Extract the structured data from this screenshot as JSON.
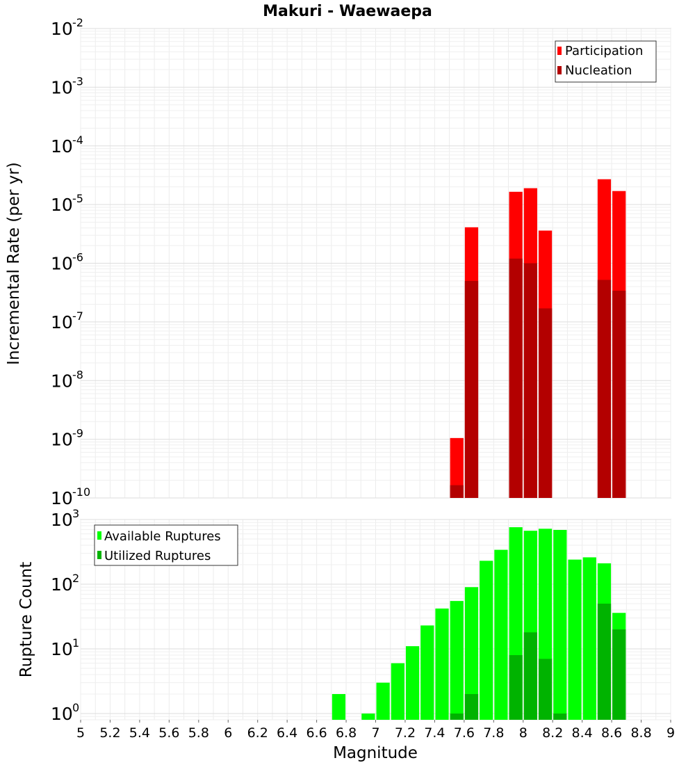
{
  "chart_data": [
    {
      "type": "bar",
      "title": "Makuri - Waewaepa",
      "xlabel": "",
      "ylabel": "Incremental Rate (per yr)",
      "yscale": "log",
      "ylim": [
        1e-10,
        0.01
      ],
      "xlim": [
        5,
        9
      ],
      "grid": true,
      "legend_position": "top-right",
      "bar_width": 0.1,
      "x": [
        7.55,
        7.65,
        7.95,
        8.05,
        8.15,
        8.55,
        8.65
      ],
      "series": [
        {
          "name": "Participation",
          "color": "#ff0000",
          "values": [
            1.05e-09,
            4.1e-06,
            1.65e-05,
            1.9e-05,
            3.6e-06,
            2.7e-05,
            1.7e-05
          ]
        },
        {
          "name": "Nucleation",
          "color": "#b30000",
          "values": [
            1.65e-10,
            5e-07,
            1.2e-06,
            1e-06,
            1.7e-07,
            5.2e-07,
            3.4e-07
          ]
        }
      ]
    },
    {
      "type": "bar",
      "title": "",
      "xlabel": "Magnitude",
      "ylabel": "Rupture Count",
      "yscale": "log",
      "ylim": [
        0.8,
        1000
      ],
      "xlim": [
        5,
        9
      ],
      "grid": true,
      "legend_position": "top-left",
      "bar_width": 0.1,
      "x": [
        6.75,
        6.85,
        6.95,
        7.05,
        7.15,
        7.25,
        7.35,
        7.45,
        7.55,
        7.65,
        7.75,
        7.85,
        7.95,
        8.05,
        8.15,
        8.25,
        8.35,
        8.45,
        8.55,
        8.65
      ],
      "series": [
        {
          "name": "Available Ruptures",
          "color": "#00ff00",
          "values": [
            2,
            0,
            1,
            3,
            6,
            11,
            23,
            42,
            55,
            90,
            230,
            340,
            760,
            670,
            720,
            690,
            240,
            260,
            210,
            36
          ]
        },
        {
          "name": "Utilized Ruptures",
          "color": "#00b300",
          "values": [
            0,
            0,
            0,
            0,
            0,
            0,
            0,
            0,
            1,
            2,
            0,
            0,
            8,
            18,
            7,
            1,
            0,
            0,
            50,
            20
          ]
        }
      ]
    }
  ],
  "x_ticks": [
    "5",
    "5.2",
    "5.4",
    "5.6",
    "5.8",
    "6",
    "6.2",
    "6.4",
    "6.6",
    "6.8",
    "7",
    "7.2",
    "7.4",
    "7.6",
    "7.8",
    "8",
    "8.2",
    "8.4",
    "8.6",
    "8.8",
    "9"
  ],
  "top_y_ticks": [
    {
      "base": "10",
      "exp": "-2"
    },
    {
      "base": "10",
      "exp": "-3"
    },
    {
      "base": "10",
      "exp": "-4"
    },
    {
      "base": "10",
      "exp": "-5"
    },
    {
      "base": "10",
      "exp": "-6"
    },
    {
      "base": "10",
      "exp": "-7"
    },
    {
      "base": "10",
      "exp": "-8"
    },
    {
      "base": "10",
      "exp": "-9"
    },
    {
      "base": "10",
      "exp": "-10"
    }
  ],
  "bottom_y_ticks": [
    {
      "base": "10",
      "exp": "3"
    },
    {
      "base": "10",
      "exp": "2"
    },
    {
      "base": "10",
      "exp": "1"
    },
    {
      "base": "10",
      "exp": "0"
    }
  ]
}
